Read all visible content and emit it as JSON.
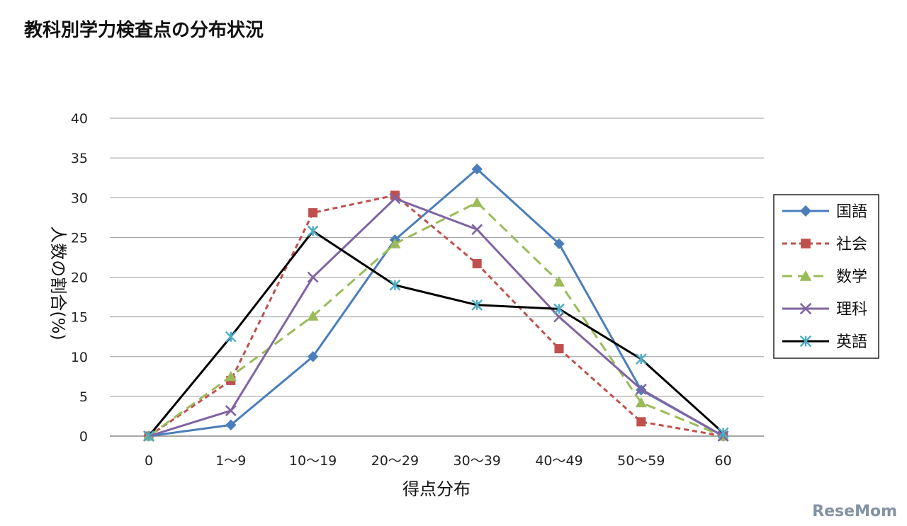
{
  "title": "教科別学力検査点の分布状況",
  "watermark": "ReseMom",
  "chart_data": {
    "type": "line",
    "categories": [
      "0",
      "1〜9",
      "10〜19",
      "20〜29",
      "30〜39",
      "40〜49",
      "50〜59",
      "60"
    ],
    "xlabel": "得点分布",
    "ylabel": "人数の割合(%)",
    "ylim": [
      0,
      40
    ],
    "yticks": [
      0,
      5,
      10,
      15,
      20,
      25,
      30,
      35,
      40
    ],
    "grid": true,
    "legend_position": "right",
    "series": [
      {
        "name": "国語",
        "color": "#4a7ebb",
        "dash": "solid",
        "marker": "diamond",
        "values": [
          0,
          1.4,
          10.0,
          24.7,
          33.6,
          24.2,
          5.8,
          0
        ]
      },
      {
        "name": "社会",
        "color": "#c0504d",
        "dash": "short-dash",
        "marker": "square",
        "values": [
          0,
          7.0,
          28.1,
          30.3,
          21.7,
          11.0,
          1.8,
          0
        ]
      },
      {
        "name": "数学",
        "color": "#9bbb59",
        "dash": "long-dash",
        "marker": "triangle",
        "values": [
          0,
          7.5,
          15.1,
          24.2,
          29.4,
          19.4,
          4.2,
          0
        ]
      },
      {
        "name": "理科",
        "color": "#8064a2",
        "dash": "solid",
        "marker": "x",
        "values": [
          0,
          3.2,
          20.0,
          29.9,
          26.0,
          15.0,
          5.9,
          0
        ]
      },
      {
        "name": "英語",
        "color": "#000000",
        "dash": "solid",
        "marker": "star",
        "marker_color": "#4bacc6",
        "values": [
          0,
          12.5,
          25.8,
          19.0,
          16.5,
          16.0,
          9.7,
          0.4
        ]
      }
    ]
  }
}
